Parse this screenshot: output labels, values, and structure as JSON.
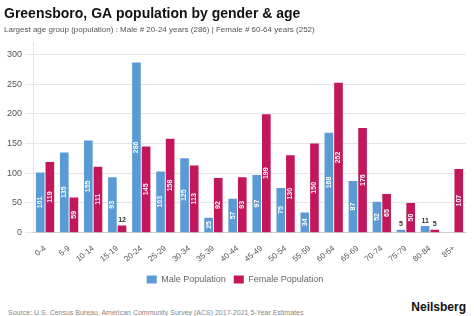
{
  "chart_data": {
    "type": "bar",
    "title": "Greensboro, GA population by gender & age",
    "subtitle": "Largest age group (population) : Male # 20-24 years (286) | Female # 60-64 years (252)",
    "annotations": [
      "Source: U.S. Census Bureau, American Community Survey (ACS) 2017-2021 5-Year Estimates",
      "Neilsberg"
    ],
    "categories": [
      "0-4",
      "5-9",
      "10-14",
      "15-19",
      "20-24",
      "25-29",
      "30-34",
      "35-39",
      "40-44",
      "45-49",
      "50-54",
      "55-59",
      "60-64",
      "65-69",
      "70-74",
      "75-79",
      "80-84",
      "85+"
    ],
    "series": [
      {
        "name": "Male Population",
        "color": "#5B9BD5",
        "values": [
          101,
          135,
          155,
          93,
          286,
          103,
          125,
          25,
          57,
          97,
          75,
          34,
          168,
          87,
          52,
          5,
          11,
          0
        ]
      },
      {
        "name": "Female Population",
        "color": "#C2185B",
        "values": [
          119,
          59,
          111,
          12,
          145,
          158,
          113,
          92,
          93,
          199,
          130,
          150,
          252,
          176,
          65,
          50,
          5,
          107
        ]
      }
    ],
    "ylim": [
      0,
      320
    ],
    "yticks": [
      0,
      50,
      100,
      150,
      200,
      250,
      300
    ],
    "grid": true,
    "legend": "bottom",
    "data_labels": true
  }
}
